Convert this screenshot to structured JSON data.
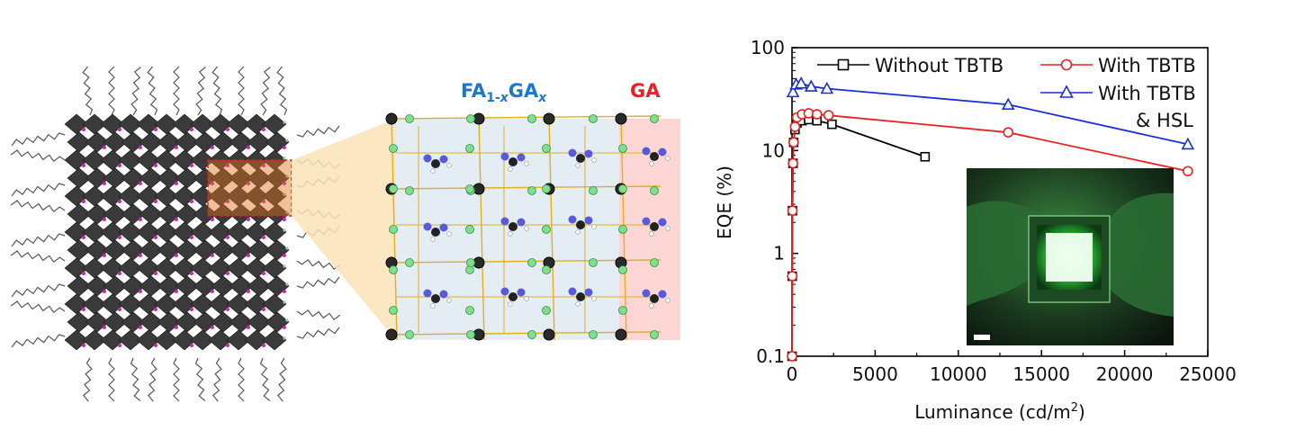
{
  "panel_left": {
    "label_mixed_prefix": "FA",
    "label_mixed_sub1": "1-",
    "label_mixed_x1": "x",
    "label_mixed_mid": "GA",
    "label_mixed_x2": "x",
    "label_ga": "GA",
    "colors": {
      "mixed_label": "#1e78c8",
      "ga_label": "#e8202a",
      "octahedra": "#3a3a3a",
      "cation_pink": "#d020c0",
      "cage_green": "#7ee08a",
      "cage_bonds": "#e0b020",
      "zoom_wedge": "#fbe3b8",
      "ga_region": "#fbd6d4",
      "mixed_region": "#e4ecf4",
      "selection_box": "#e02020"
    }
  },
  "chart_data": {
    "type": "scatter",
    "xlabel": "Luminance (cd/m",
    "xlabel_sup": "2",
    "xlabel_close": ")",
    "ylabel": "EQE (%)",
    "xlim": [
      0,
      25000
    ],
    "ylim": [
      0.1,
      100
    ],
    "y_scale": "log",
    "x_ticks": [
      0,
      5000,
      10000,
      15000,
      20000,
      25000
    ],
    "x_tick_labels": [
      "0",
      "5000",
      "10000",
      "15000",
      "20000",
      "25000"
    ],
    "y_ticks": [
      0.1,
      1,
      10,
      100
    ],
    "y_tick_labels": [
      "0.1",
      "1",
      "10",
      "100"
    ],
    "grid": false,
    "legend_position": "top",
    "series": [
      {
        "name": "Without TBTB",
        "color": "#000000",
        "marker": "square",
        "x": [
          5,
          15,
          30,
          60,
          100,
          180,
          300,
          600,
          1000,
          1500,
          2400,
          8000
        ],
        "y": [
          0.1,
          0.6,
          2.6,
          7.5,
          12,
          16,
          18.5,
          19.5,
          20,
          19.5,
          18,
          8.7
        ]
      },
      {
        "name": "With TBTB",
        "color": "#e82020",
        "marker": "circle",
        "x": [
          5,
          15,
          30,
          60,
          100,
          180,
          300,
          600,
          1000,
          1500,
          2200,
          13000,
          23800
        ],
        "y": [
          0.1,
          0.6,
          2.6,
          7.5,
          12,
          17,
          21,
          22.5,
          23,
          22.5,
          22,
          15,
          6.3
        ]
      },
      {
        "name": "With TBTB\n& HSL",
        "name_line1": "With TBTB",
        "name_line2": "& HSL",
        "color": "#1a2fd8",
        "marker": "triangle",
        "x": [
          60,
          250,
          550,
          1150,
          2100,
          13000,
          23800
        ],
        "y": [
          37,
          44,
          45,
          42,
          40,
          28,
          11.5
        ]
      }
    ]
  }
}
